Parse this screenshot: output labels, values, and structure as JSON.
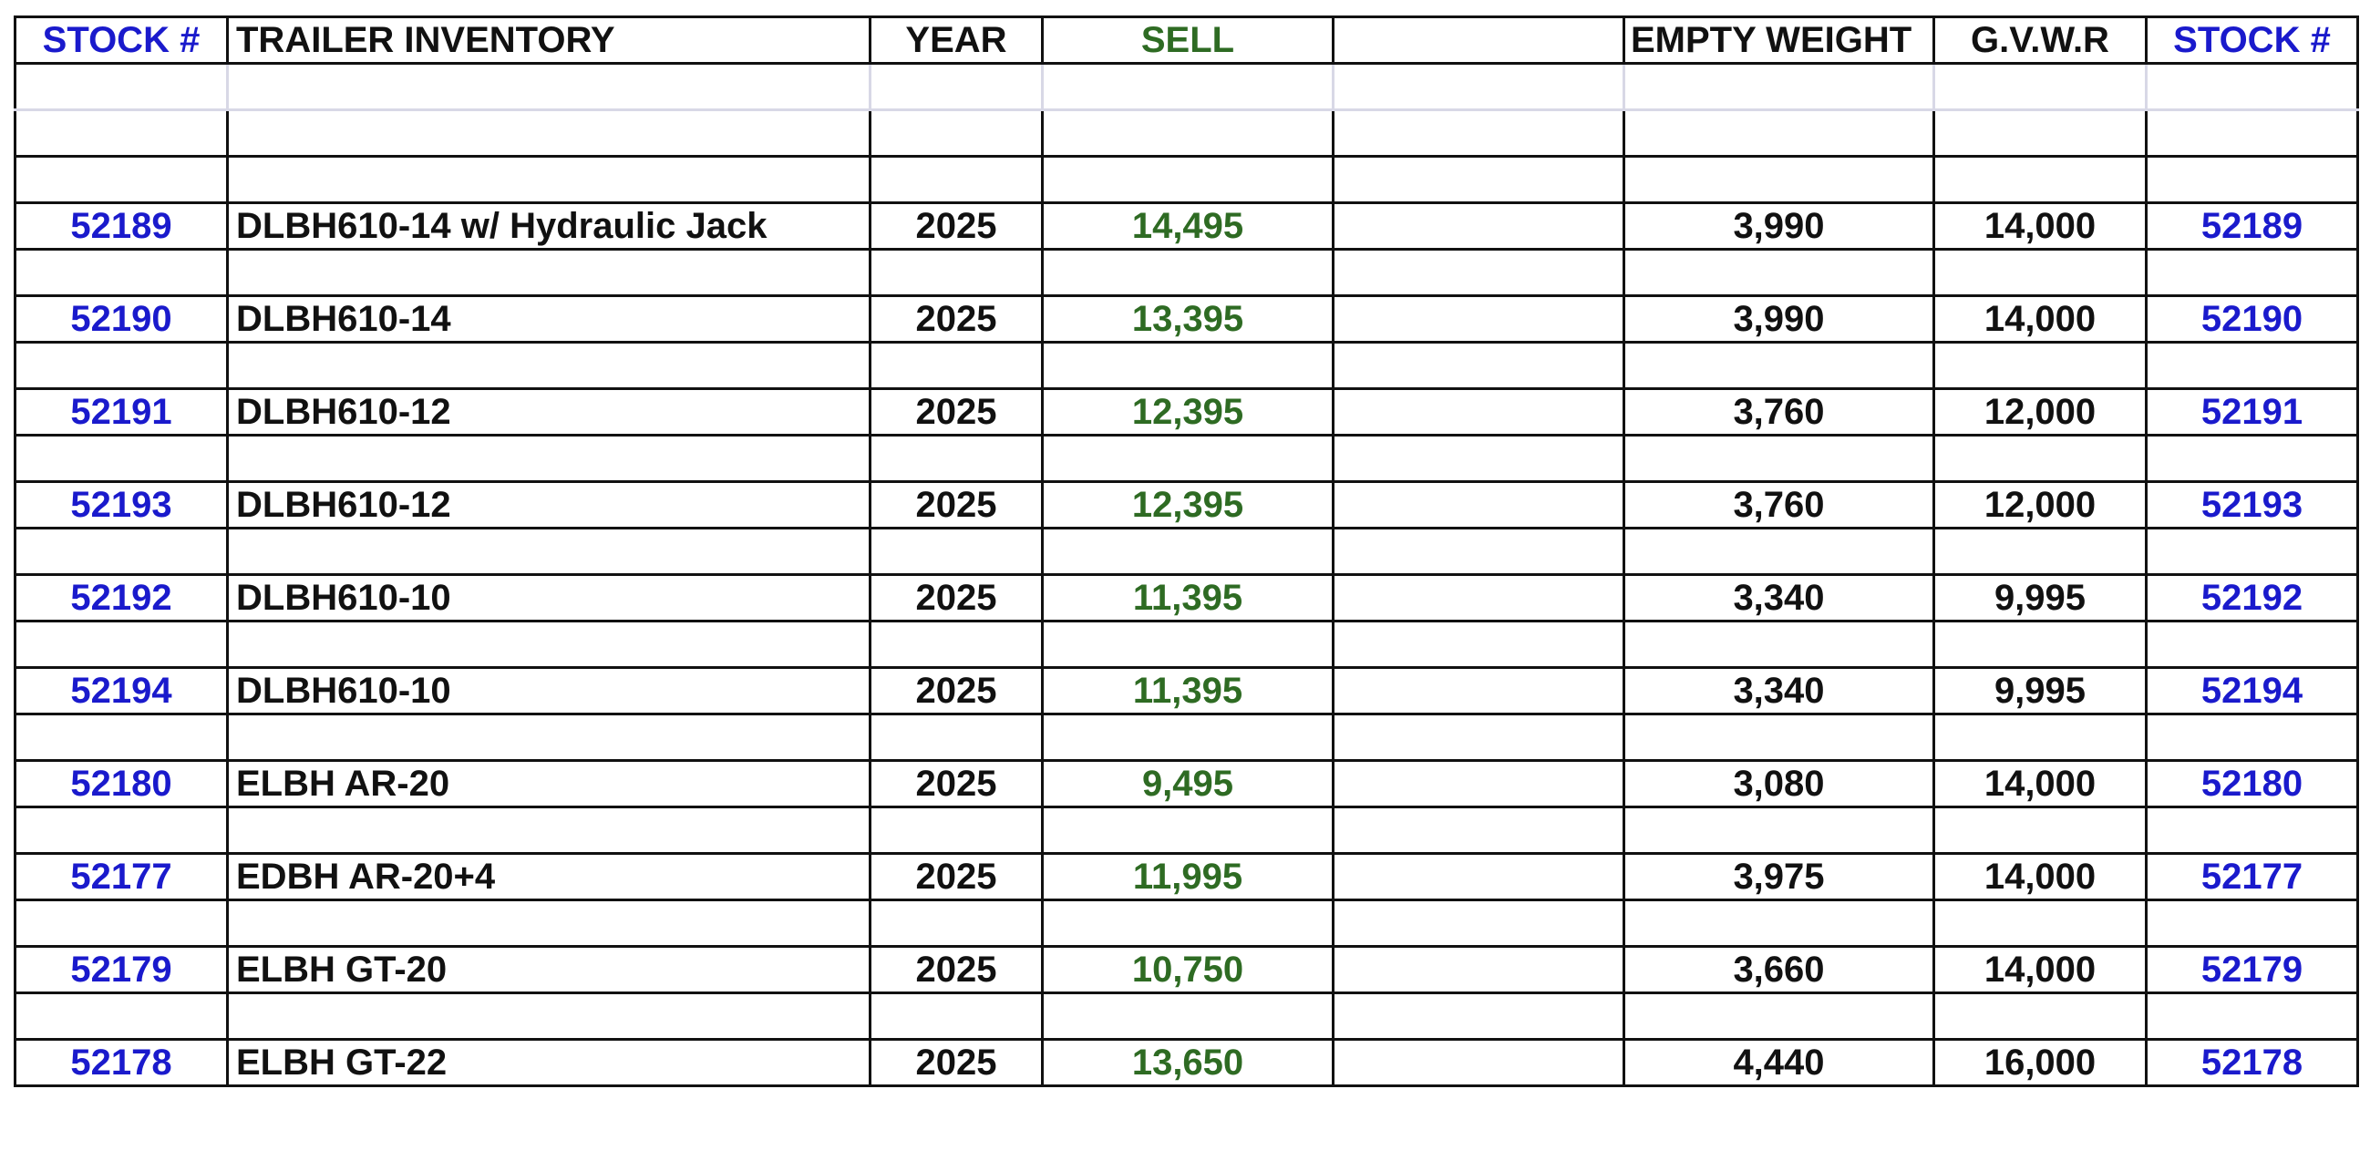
{
  "header": {
    "stock_left": "STOCK #",
    "inventory": "TRAILER INVENTORY",
    "year": "YEAR",
    "sell": "SELL",
    "blank": "",
    "empty_weight": "EMPTY WEIGHT",
    "gvwr": "G.V.W.R",
    "stock_right": "STOCK #"
  },
  "rows": [
    {
      "stock": "52189",
      "model": "DLBH610-14 w/ Hydraulic Jack",
      "year": "2025",
      "sell": "14,495",
      "empty_weight": "3,990",
      "gvwr": "14,000"
    },
    {
      "stock": "52190",
      "model": "DLBH610-14",
      "year": "2025",
      "sell": "13,395",
      "empty_weight": "3,990",
      "gvwr": "14,000"
    },
    {
      "stock": "52191",
      "model": "DLBH610-12",
      "year": "2025",
      "sell": "12,395",
      "empty_weight": "3,760",
      "gvwr": "12,000"
    },
    {
      "stock": "52193",
      "model": "DLBH610-12",
      "year": "2025",
      "sell": "12,395",
      "empty_weight": "3,760",
      "gvwr": "12,000"
    },
    {
      "stock": "52192",
      "model": "DLBH610-10",
      "year": "2025",
      "sell": "11,395",
      "empty_weight": "3,340",
      "gvwr": "9,995"
    },
    {
      "stock": "52194",
      "model": "DLBH610-10",
      "year": "2025",
      "sell": "11,395",
      "empty_weight": "3,340",
      "gvwr": "9,995"
    },
    {
      "stock": "52180",
      "model": "ELBH AR-20",
      "year": "2025",
      "sell": "9,495",
      "empty_weight": "3,080",
      "gvwr": "14,000"
    },
    {
      "stock": "52177",
      "model": "EDBH AR-20+4",
      "year": "2025",
      "sell": "11,995",
      "empty_weight": "3,975",
      "gvwr": "14,000"
    },
    {
      "stock": "52179",
      "model": "ELBH GT-20",
      "year": "2025",
      "sell": "10,750",
      "empty_weight": "3,660",
      "gvwr": "14,000"
    },
    {
      "stock": "52178",
      "model": "ELBH GT-22",
      "year": "2025",
      "sell": "13,650",
      "empty_weight": "4,440",
      "gvwr": "16,000"
    }
  ],
  "colors": {
    "stock": "#1a1acc",
    "sell": "#2e6b23",
    "text": "#111111"
  }
}
